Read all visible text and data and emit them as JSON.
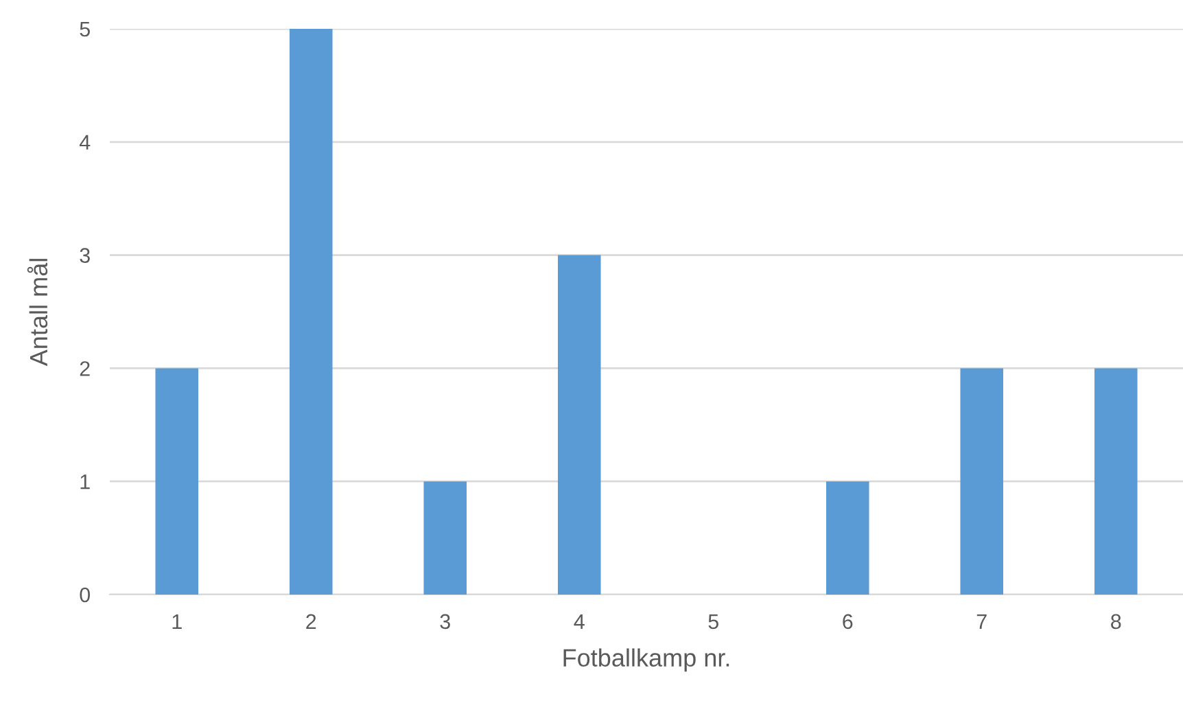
{
  "chart_data": {
    "type": "bar",
    "xlabel": "Fotballkamp nr.",
    "ylabel": "Antall mål",
    "categories": [
      "1",
      "2",
      "3",
      "4",
      "5",
      "6",
      "7",
      "8"
    ],
    "values": [
      2,
      5,
      1,
      3,
      0,
      1,
      2,
      2
    ],
    "color": "#5b9bd5",
    "ylim": [
      0,
      5
    ],
    "yticks": [
      0,
      1,
      2,
      3,
      4,
      5
    ],
    "grid": "y"
  }
}
